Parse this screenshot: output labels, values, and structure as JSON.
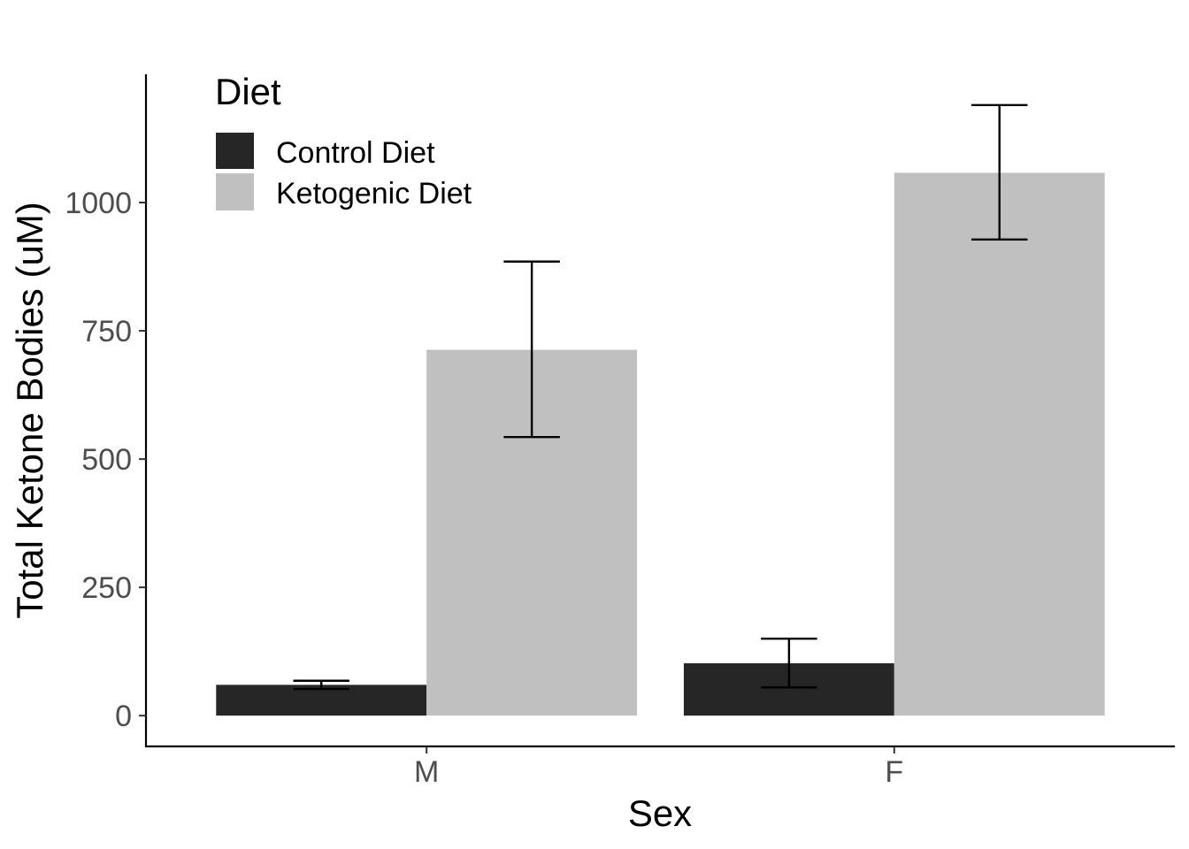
{
  "chart_data": {
    "type": "bar",
    "xlabel": "Sex",
    "ylabel": "Total Ketone Bodies (uM)",
    "categories": [
      "M",
      "F"
    ],
    "ylim": [
      -60,
      1250
    ],
    "yticks": [
      0,
      250,
      500,
      750,
      1000
    ],
    "ytick_labels": [
      "0",
      "250",
      "500",
      "750",
      "1000"
    ],
    "grid": false,
    "legend": {
      "title": "Diet",
      "position": "top-left"
    },
    "series": [
      {
        "name": "Control Diet",
        "color": "#262626",
        "values": [
          60,
          102
        ],
        "error_low": [
          52,
          55
        ],
        "error_high": [
          68,
          150
        ]
      },
      {
        "name": "Ketogenic Diet",
        "color": "#c0c0c0",
        "values": [
          713,
          1058
        ],
        "error_low": [
          543,
          928
        ],
        "error_high": [
          885,
          1190
        ]
      }
    ]
  }
}
